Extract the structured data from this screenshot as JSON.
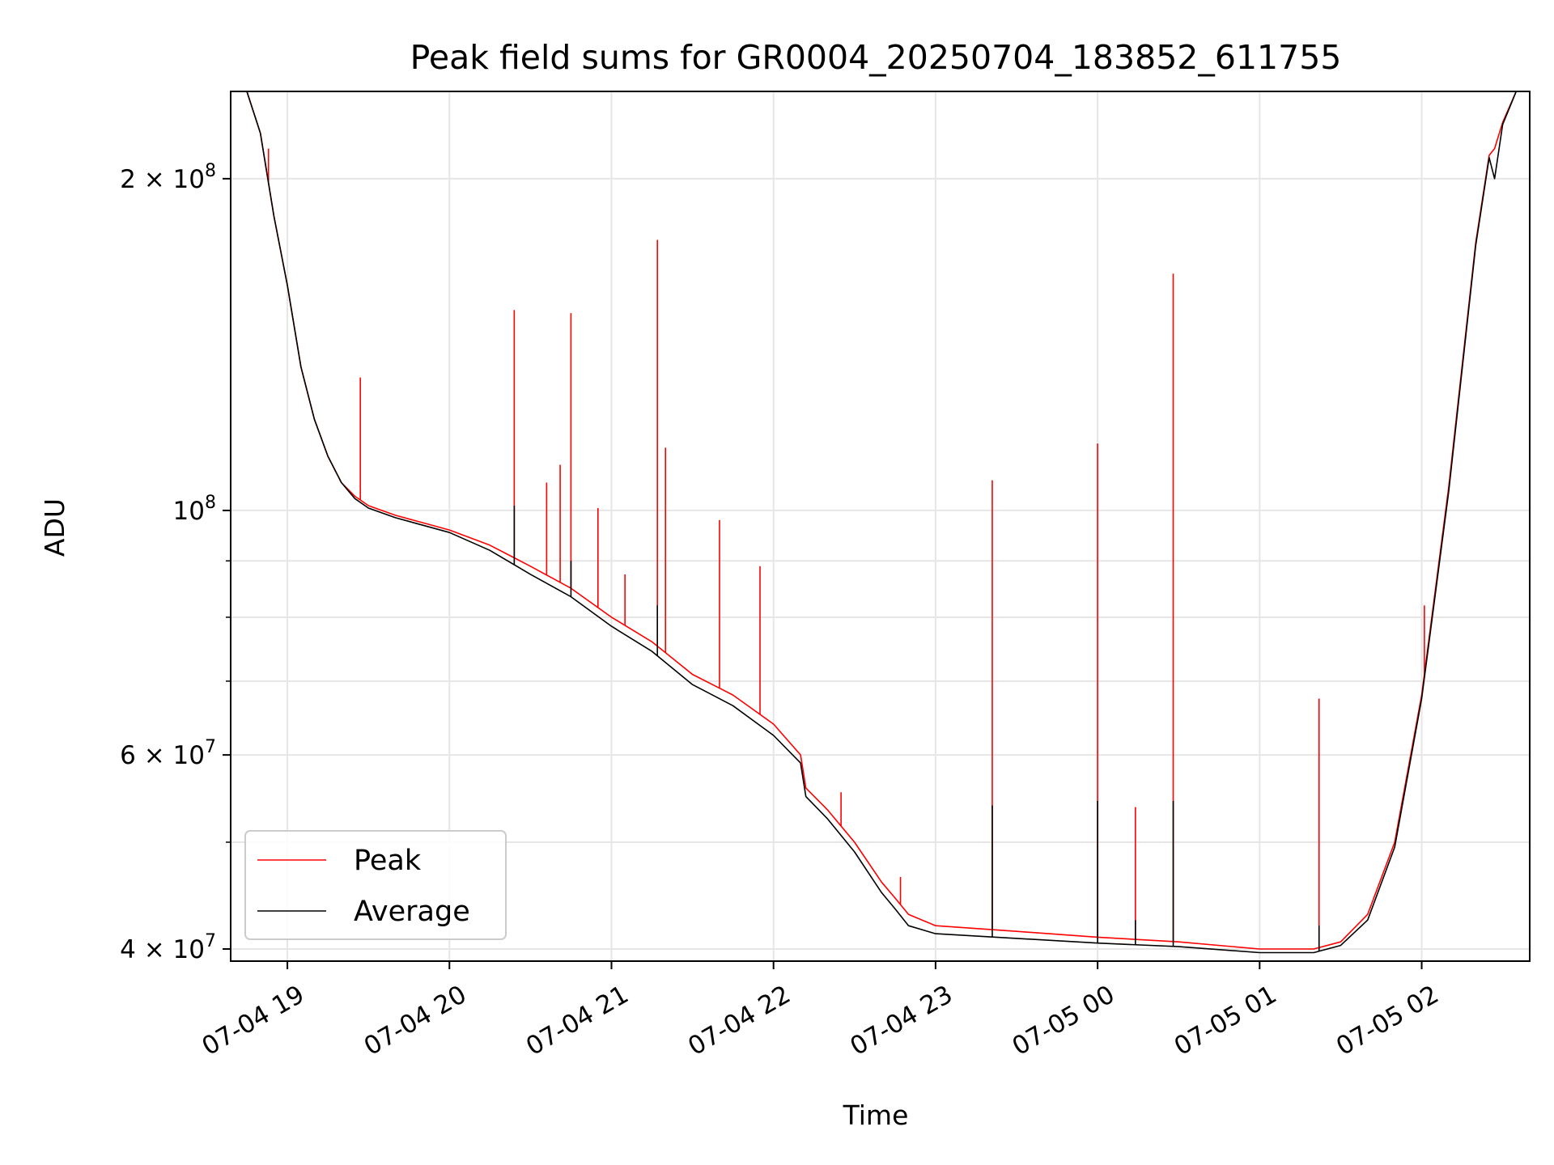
{
  "chart_data": {
    "type": "line",
    "title": "Peak field sums for GR0004_20250704_183852_611755",
    "xlabel": "Time",
    "ylabel": "ADU",
    "y_scale": "log",
    "ylim": [
      39000000,
      240000000
    ],
    "xlim": [
      "2025-07-04 18:39",
      "2025-07-05 02:40"
    ],
    "grid": true,
    "legend_position": "lower-left",
    "x_ticks": [
      {
        "t": "2025-07-04 19:00",
        "label": "07-04 19"
      },
      {
        "t": "2025-07-04 20:00",
        "label": "07-04 20"
      },
      {
        "t": "2025-07-04 21:00",
        "label": "07-04 21"
      },
      {
        "t": "2025-07-04 22:00",
        "label": "07-04 22"
      },
      {
        "t": "2025-07-04 23:00",
        "label": "07-04 23"
      },
      {
        "t": "2025-07-05 00:00",
        "label": "07-05 00"
      },
      {
        "t": "2025-07-05 01:00",
        "label": "07-05 01"
      },
      {
        "t": "2025-07-05 02:00",
        "label": "07-05 02"
      }
    ],
    "y_ticks": [
      {
        "value": 40000000,
        "mantissa": "4",
        "exp": "7"
      },
      {
        "value": 60000000,
        "mantissa": "6",
        "exp": "7"
      },
      {
        "value": 100000000,
        "mantissa": "",
        "exp": "8"
      },
      {
        "value": 200000000,
        "mantissa": "2",
        "exp": "8"
      }
    ],
    "y_minor_ticks": [
      50000000,
      70000000,
      80000000,
      90000000
    ],
    "series": [
      {
        "name": "Peak",
        "color": "#ff0000",
        "points": [
          [
            "2025-07-04 18:39",
            240000000
          ],
          [
            "2025-07-04 18:45",
            240000000
          ],
          [
            "2025-07-04 18:50",
            220000000
          ],
          [
            "2025-07-04 18:55",
            185000000
          ],
          [
            "2025-07-04 19:00",
            160000000
          ],
          [
            "2025-07-04 19:05",
            135000000
          ],
          [
            "2025-07-04 19:10",
            121000000
          ],
          [
            "2025-07-04 19:15",
            112000000
          ],
          [
            "2025-07-04 19:20",
            106000000
          ],
          [
            "2025-07-04 19:25",
            103000000
          ],
          [
            "2025-07-04 19:30",
            101000000
          ],
          [
            "2025-07-04 19:40",
            99000000
          ],
          [
            "2025-07-04 20:00",
            96000000
          ],
          [
            "2025-07-04 20:15",
            93000000
          ],
          [
            "2025-07-04 20:30",
            89000000
          ],
          [
            "2025-07-04 20:45",
            85000000
          ],
          [
            "2025-07-04 21:00",
            80000000
          ],
          [
            "2025-07-04 21:15",
            76000000
          ],
          [
            "2025-07-04 21:30",
            71000000
          ],
          [
            "2025-07-04 21:45",
            68000000
          ],
          [
            "2025-07-04 22:00",
            64000000
          ],
          [
            "2025-07-04 22:10",
            60000000
          ],
          [
            "2025-07-04 22:12",
            56000000
          ],
          [
            "2025-07-04 22:20",
            53500000
          ],
          [
            "2025-07-04 22:30",
            50000000
          ],
          [
            "2025-07-04 22:40",
            46000000
          ],
          [
            "2025-07-04 22:45",
            44500000
          ],
          [
            "2025-07-04 22:50",
            43000000
          ],
          [
            "2025-07-04 23:00",
            42000000
          ],
          [
            "2025-07-04 23:30",
            41500000
          ],
          [
            "2025-07-05 00:00",
            41000000
          ],
          [
            "2025-07-05 00:30",
            40600000
          ],
          [
            "2025-07-05 01:00",
            40000000
          ],
          [
            "2025-07-05 01:20",
            40000000
          ],
          [
            "2025-07-05 01:30",
            40600000
          ],
          [
            "2025-07-05 01:40",
            43000000
          ],
          [
            "2025-07-05 01:50",
            50000000
          ],
          [
            "2025-07-05 02:00",
            68000000
          ],
          [
            "2025-07-05 02:10",
            105000000
          ],
          [
            "2025-07-05 02:20",
            175000000
          ],
          [
            "2025-07-05 02:25",
            210000000
          ],
          [
            "2025-07-05 02:27",
            213000000
          ],
          [
            "2025-07-05 02:30",
            225000000
          ],
          [
            "2025-07-05 02:35",
            240000000
          ],
          [
            "2025-07-05 02:40",
            240000000
          ]
        ],
        "spikes": [
          [
            "2025-07-04 18:53",
            213000000
          ],
          [
            "2025-07-04 19:27",
            132000000
          ],
          [
            "2025-07-04 20:24",
            152000000
          ],
          [
            "2025-07-04 20:36",
            106000000
          ],
          [
            "2025-07-04 20:41",
            110000000
          ],
          [
            "2025-07-04 20:45",
            151000000
          ],
          [
            "2025-07-04 20:55",
            100500000
          ],
          [
            "2025-07-04 21:05",
            87500000
          ],
          [
            "2025-07-04 21:17",
            176000000
          ],
          [
            "2025-07-04 21:20",
            114000000
          ],
          [
            "2025-07-04 21:40",
            98000000
          ],
          [
            "2025-07-04 21:55",
            89000000
          ],
          [
            "2025-07-04 22:25",
            55500000
          ],
          [
            "2025-07-04 22:47",
            46500000
          ],
          [
            "2025-07-04 23:21",
            106500000
          ],
          [
            "2025-07-05 00:00",
            115000000
          ],
          [
            "2025-07-05 00:14",
            53800000
          ],
          [
            "2025-07-05 00:28",
            164000000
          ],
          [
            "2025-07-05 01:22",
            67500000
          ],
          [
            "2025-07-05 02:01",
            82000000
          ]
        ]
      },
      {
        "name": "Average",
        "color": "#000000",
        "points": [
          [
            "2025-07-04 18:39",
            240000000
          ],
          [
            "2025-07-04 18:45",
            240000000
          ],
          [
            "2025-07-04 18:50",
            220000000
          ],
          [
            "2025-07-04 18:55",
            185000000
          ],
          [
            "2025-07-04 19:00",
            160000000
          ],
          [
            "2025-07-04 19:05",
            135000000
          ],
          [
            "2025-07-04 19:10",
            121000000
          ],
          [
            "2025-07-04 19:15",
            112000000
          ],
          [
            "2025-07-04 19:20",
            106000000
          ],
          [
            "2025-07-04 19:25",
            102500000
          ],
          [
            "2025-07-04 19:30",
            100500000
          ],
          [
            "2025-07-04 19:40",
            98500000
          ],
          [
            "2025-07-04 20:00",
            95500000
          ],
          [
            "2025-07-04 20:15",
            92000000
          ],
          [
            "2025-07-04 20:30",
            87500000
          ],
          [
            "2025-07-04 20:45",
            83500000
          ],
          [
            "2025-07-04 21:00",
            78500000
          ],
          [
            "2025-07-04 21:15",
            74500000
          ],
          [
            "2025-07-04 21:30",
            69500000
          ],
          [
            "2025-07-04 21:45",
            66500000
          ],
          [
            "2025-07-04 22:00",
            62500000
          ],
          [
            "2025-07-04 22:10",
            59000000
          ],
          [
            "2025-07-04 22:12",
            55000000
          ],
          [
            "2025-07-04 22:20",
            52500000
          ],
          [
            "2025-07-04 22:30",
            49000000
          ],
          [
            "2025-07-04 22:40",
            45000000
          ],
          [
            "2025-07-04 22:45",
            43500000
          ],
          [
            "2025-07-04 22:50",
            42000000
          ],
          [
            "2025-07-04 23:00",
            41300000
          ],
          [
            "2025-07-04 23:30",
            40900000
          ],
          [
            "2025-07-05 00:00",
            40500000
          ],
          [
            "2025-07-05 00:30",
            40200000
          ],
          [
            "2025-07-05 01:00",
            39700000
          ],
          [
            "2025-07-05 01:20",
            39700000
          ],
          [
            "2025-07-05 01:30",
            40300000
          ],
          [
            "2025-07-05 01:40",
            42500000
          ],
          [
            "2025-07-05 01:50",
            49500000
          ],
          [
            "2025-07-05 02:00",
            67500000
          ],
          [
            "2025-07-05 02:10",
            104000000
          ],
          [
            "2025-07-05 02:20",
            174000000
          ],
          [
            "2025-07-05 02:25",
            209000000
          ],
          [
            "2025-07-05 02:27",
            200000000
          ],
          [
            "2025-07-05 02:30",
            224000000
          ],
          [
            "2025-07-05 02:35",
            240000000
          ],
          [
            "2025-07-05 02:40",
            240000000
          ]
        ],
        "spikes": [
          [
            "2025-07-04 20:24",
            101000000
          ],
          [
            "2025-07-04 20:45",
            90000000
          ],
          [
            "2025-07-04 21:17",
            82000000
          ],
          [
            "2025-07-04 23:21",
            54000000
          ],
          [
            "2025-07-05 00:00",
            54500000
          ],
          [
            "2025-07-05 00:14",
            42500000
          ],
          [
            "2025-07-05 00:28",
            54500000
          ],
          [
            "2025-07-05 01:22",
            42000000
          ]
        ]
      }
    ]
  }
}
